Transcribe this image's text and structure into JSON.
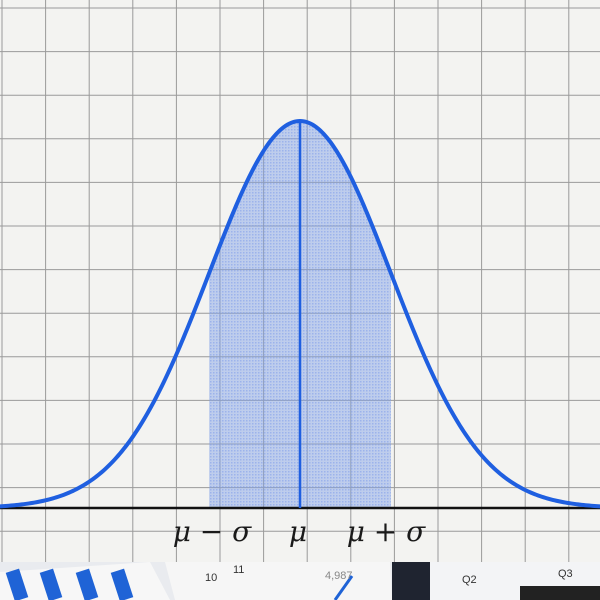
{
  "chart_data": {
    "type": "line",
    "title": "",
    "xlabel": "",
    "ylabel": "",
    "distribution": "normal",
    "mean": 0,
    "sd": 1,
    "xlim": [
      -3.3,
      3.3
    ],
    "shaded_interval": [
      -1,
      1
    ],
    "mean_line": true,
    "grid": true,
    "tick_labels": [
      {
        "x": -1,
        "label": "μ − σ"
      },
      {
        "x": 0,
        "label": "μ"
      },
      {
        "x": 1,
        "label": "μ + σ"
      }
    ],
    "curve_color": "#1f5fe0",
    "shade_color": "#7f9fe8"
  },
  "background_strip": {
    "texts": [
      "10",
      "11",
      "4,987",
      "Q2",
      "Q3"
    ]
  }
}
